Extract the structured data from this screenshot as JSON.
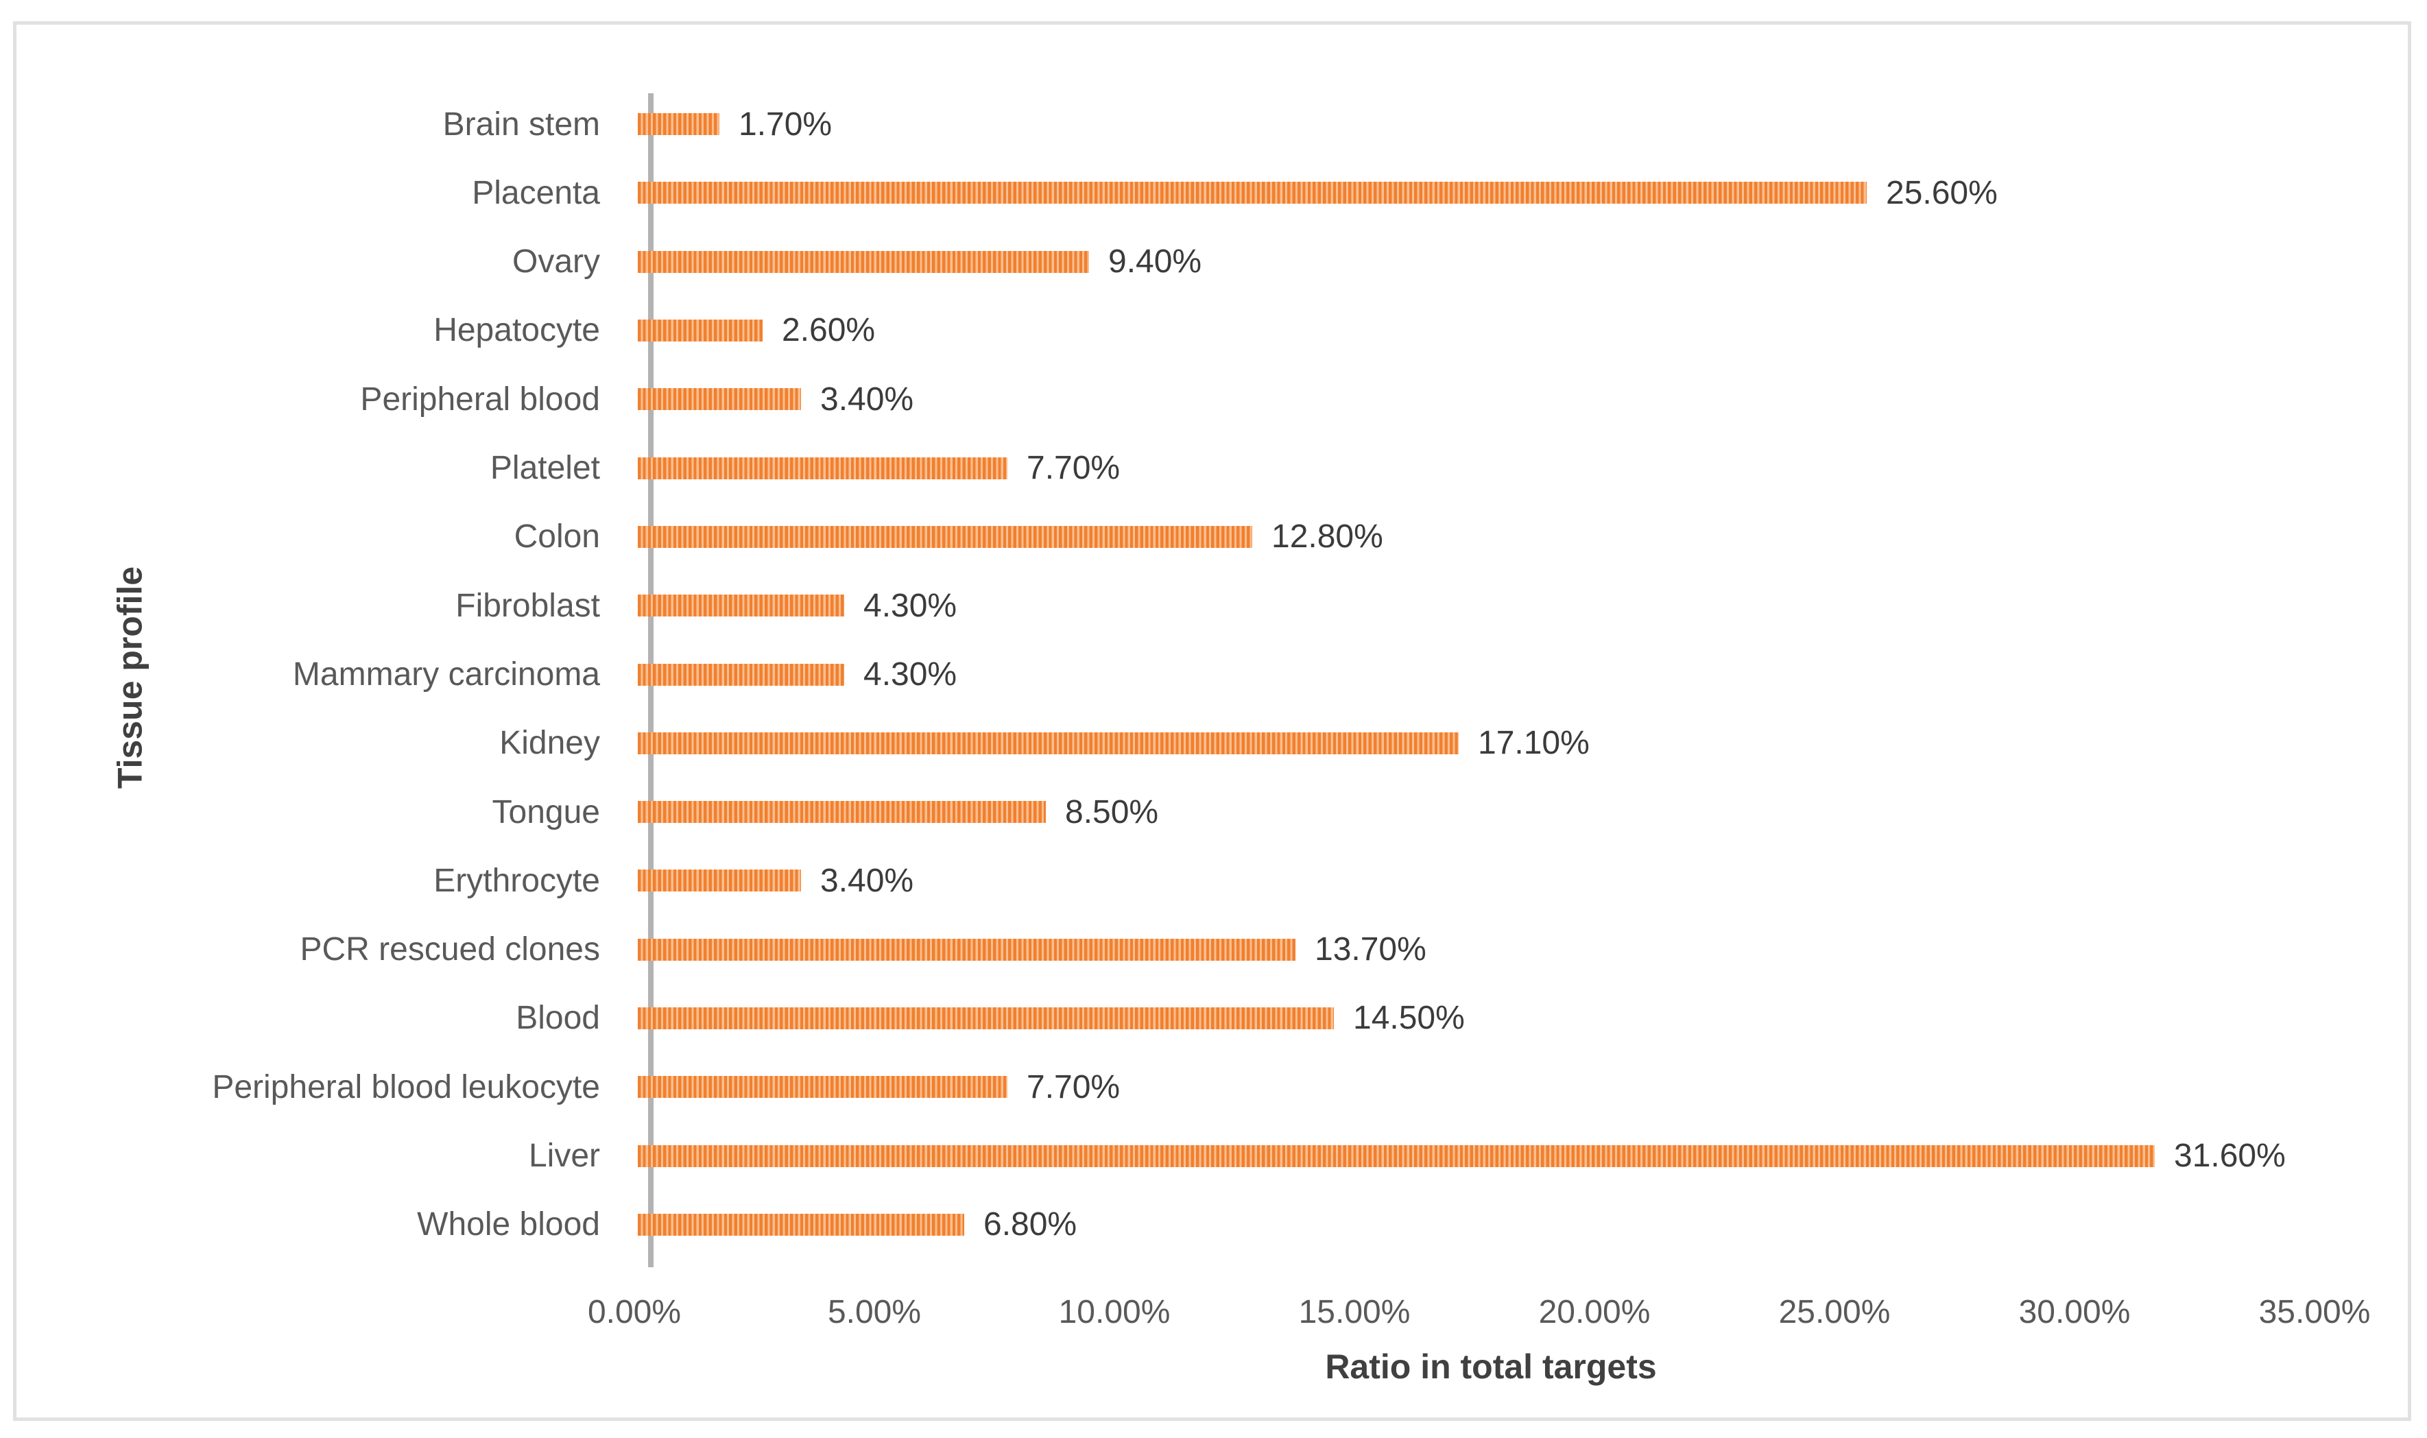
{
  "chart_data": {
    "type": "bar",
    "orientation": "horizontal",
    "title": "",
    "xlabel": "Ratio in total targets",
    "ylabel": "Tissue profile",
    "categories": [
      "Brain stem",
      "Placenta",
      "Ovary",
      "Hepatocyte",
      "Peripheral blood",
      "Platelet",
      "Colon",
      "Fibroblast",
      "Mammary carcinoma",
      "Kidney",
      "Tongue",
      "Erythrocyte",
      "PCR rescued clones",
      "Blood",
      "Peripheral blood leukocyte",
      "Liver",
      "Whole blood"
    ],
    "values": [
      1.7,
      25.6,
      9.4,
      2.6,
      3.4,
      7.7,
      12.8,
      4.3,
      4.3,
      17.1,
      8.5,
      3.4,
      13.7,
      14.5,
      7.7,
      31.6,
      6.8
    ],
    "value_labels": [
      "1.70%",
      "25.60%",
      "9.40%",
      "2.60%",
      "3.40%",
      "7.70%",
      "12.80%",
      "4.30%",
      "4.30%",
      "17.10%",
      "8.50%",
      "3.40%",
      "13.70%",
      "14.50%",
      "7.70%",
      "31.60%",
      "6.80%"
    ],
    "x_ticks": [
      "0.00%",
      "5.00%",
      "10.00%",
      "15.00%",
      "20.00%",
      "25.00%",
      "30.00%",
      "35.00%"
    ],
    "x_tick_values": [
      0,
      5,
      10,
      15,
      20,
      25,
      30,
      35
    ],
    "xlim": [
      0,
      35
    ],
    "grid": false,
    "legend": false,
    "colors": {
      "bar_stripe_dark": "#f0802f",
      "bar_stripe_light": "#fbbe8f",
      "axis_line": "#b3b3b3",
      "category_label": "#595959",
      "tick_label": "#595959",
      "value_label": "#3b3b3b",
      "axis_title": "#404040",
      "frame_border": "#e1e1e1",
      "background": "#ffffff"
    }
  }
}
